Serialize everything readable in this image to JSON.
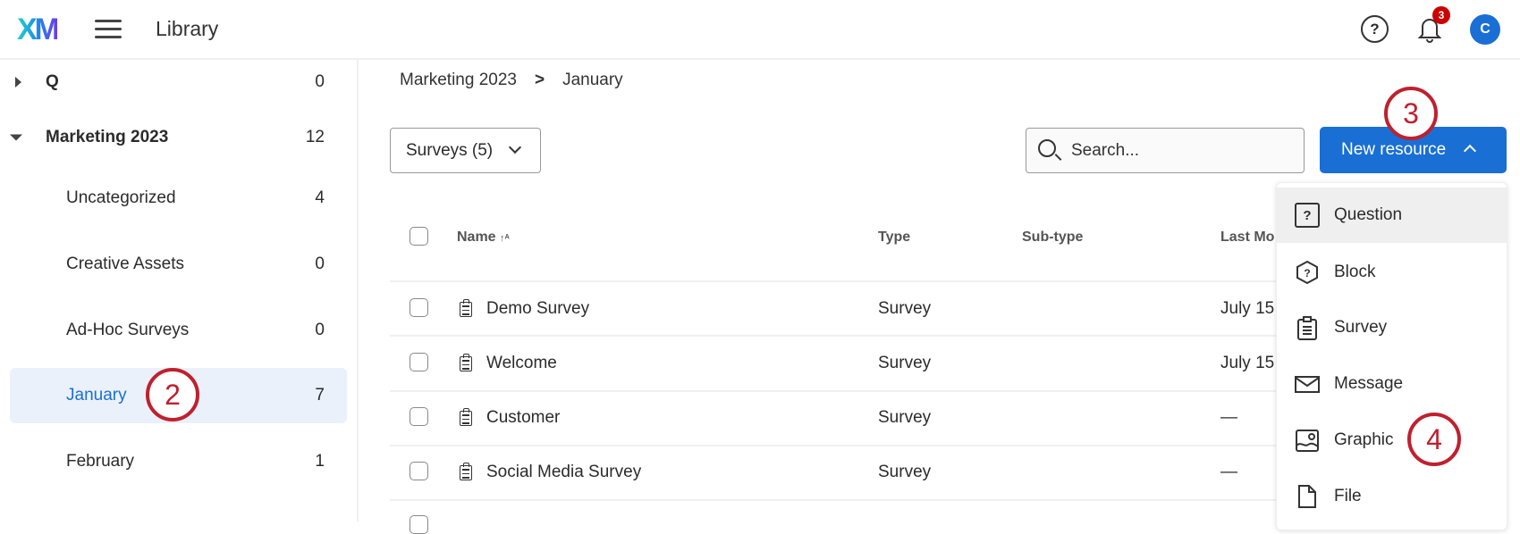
{
  "header": {
    "logo": "XM",
    "title": "Library",
    "help": "?",
    "notification_count": "3",
    "avatar": "C"
  },
  "sidebar": {
    "items": [
      {
        "label": "Q",
        "count": "0",
        "expanded": false,
        "bold": true
      },
      {
        "label": "Marketing 2023",
        "count": "12",
        "expanded": true,
        "bold": true
      },
      {
        "label": "Uncategorized",
        "count": "4"
      },
      {
        "label": "Creative Assets",
        "count": "0"
      },
      {
        "label": "Ad-Hoc Surveys",
        "count": "0"
      },
      {
        "label": "January",
        "count": "7",
        "selected": true
      },
      {
        "label": "February",
        "count": "1"
      }
    ]
  },
  "breadcrumb": {
    "parent": "Marketing 2023",
    "separator": ">",
    "current": "January"
  },
  "toolbar": {
    "filter": "Surveys (5)",
    "search_placeholder": "Search...",
    "new_resource": "New resource"
  },
  "table": {
    "columns": [
      "Name",
      "Type",
      "Sub-type",
      "Last Mo"
    ],
    "rows": [
      {
        "name": "Demo Survey",
        "type": "Survey",
        "subtype": "",
        "modified": "July 15"
      },
      {
        "name": "Welcome",
        "type": "Survey",
        "subtype": "",
        "modified": "July 15"
      },
      {
        "name": "Customer",
        "type": "Survey",
        "subtype": "",
        "modified": "—"
      },
      {
        "name": "Social Media Survey",
        "type": "Survey",
        "subtype": "",
        "modified": "—"
      }
    ]
  },
  "menu": {
    "items": [
      {
        "label": "Question",
        "icon": "question-bracket-icon"
      },
      {
        "label": "Block",
        "icon": "hexagon-question-icon"
      },
      {
        "label": "Survey",
        "icon": "clipboard-icon"
      },
      {
        "label": "Message",
        "icon": "envelope-icon"
      },
      {
        "label": "Graphic",
        "icon": "image-icon"
      },
      {
        "label": "File",
        "icon": "file-icon"
      }
    ]
  },
  "callouts": {
    "two": "2",
    "three": "3",
    "four": "4"
  },
  "colors": {
    "accent": "#1a6fd4",
    "callout": "#c0202e",
    "badge": "#cc0000",
    "selected_bg": "#eaf1fb"
  }
}
